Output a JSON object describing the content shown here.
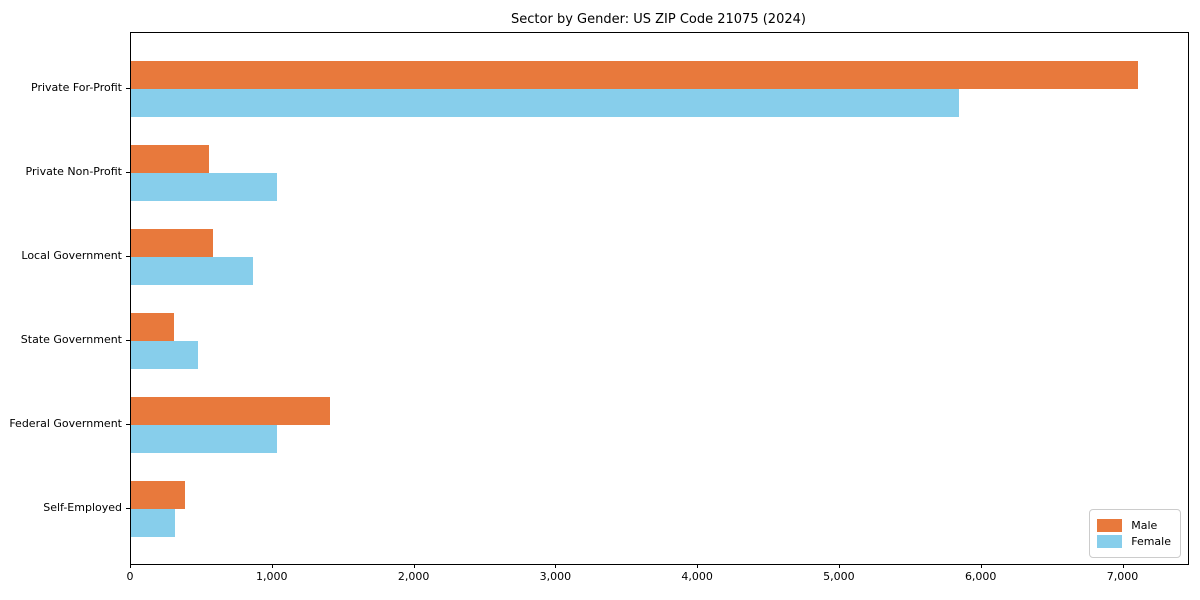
{
  "chart_data": {
    "type": "bar",
    "orientation": "horizontal",
    "title": "Sector by Gender: US ZIP Code 21075 (2024)",
    "xlabel": "",
    "ylabel": "",
    "categories": [
      "Private For-Profit",
      "Private Non-Profit",
      "Local Government",
      "State Government",
      "Federal Government",
      "Self-Employed"
    ],
    "series": [
      {
        "name": "Male",
        "color": "#e8793c",
        "values": [
          7100,
          550,
          580,
          300,
          1400,
          380
        ]
      },
      {
        "name": "Female",
        "color": "#87ceeb",
        "values": [
          5840,
          1030,
          860,
          470,
          1030,
          310
        ]
      }
    ],
    "xlim": [
      0,
      7455
    ],
    "x_ticks": [
      {
        "value": 0,
        "label": "0"
      },
      {
        "value": 1000,
        "label": "1,000"
      },
      {
        "value": 2000,
        "label": "2,000"
      },
      {
        "value": 3000,
        "label": "3,000"
      },
      {
        "value": 4000,
        "label": "4,000"
      },
      {
        "value": 5000,
        "label": "5,000"
      },
      {
        "value": 6000,
        "label": "6,000"
      },
      {
        "value": 7000,
        "label": "7,000"
      }
    ],
    "grid": false,
    "legend_position": "lower right"
  }
}
